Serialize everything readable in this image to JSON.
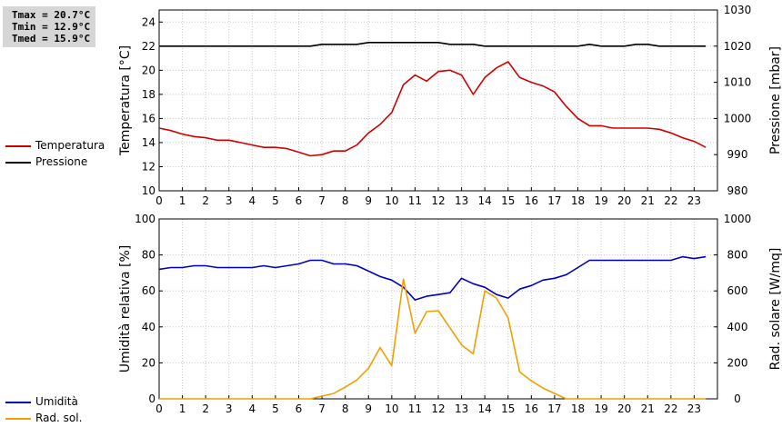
{
  "stats": {
    "tmax": "Tmax = 20.7°C",
    "tmin": "Tmin = 12.9°C",
    "tmed": "Tmed = 15.9°C"
  },
  "legend_top": [
    {
      "label": "Temperatura",
      "color": "#d00000"
    },
    {
      "label": "Pressione",
      "color": "#000000"
    }
  ],
  "legend_bottom": [
    {
      "label": "Umidità",
      "color": "#0000c0"
    },
    {
      "label": "Rad. sol.",
      "color": "#f0a000"
    }
  ],
  "chart_data": [
    {
      "type": "line",
      "xlim": [
        0,
        24
      ],
      "xticks": [
        0,
        1,
        2,
        3,
        4,
        5,
        6,
        7,
        8,
        9,
        10,
        11,
        12,
        13,
        14,
        15,
        16,
        17,
        18,
        19,
        20,
        21,
        22,
        23
      ],
      "grid": true,
      "ylabel": "Temperatura [°C]",
      "ylim": [
        10,
        25
      ],
      "yticks": [
        10,
        12,
        14,
        16,
        18,
        20,
        22,
        24
      ],
      "y2label": "Pressione [mbar]",
      "y2lim": [
        980,
        1030
      ],
      "y2ticks": [
        980,
        990,
        1000,
        1010,
        1020,
        1030
      ],
      "series": [
        {
          "name": "Temperatura",
          "axis": "left",
          "color": "#d00000",
          "x": [
            0,
            0.5,
            1,
            1.5,
            2,
            2.5,
            3,
            3.5,
            4,
            4.5,
            5,
            5.5,
            6,
            6.5,
            7,
            7.5,
            8,
            8.5,
            9,
            9.5,
            10,
            10.5,
            11,
            11.5,
            12,
            12.5,
            13,
            13.5,
            14,
            14.5,
            15,
            15.5,
            16,
            16.5,
            17,
            17.5,
            18,
            18.5,
            19,
            19.5,
            20,
            20.5,
            21,
            21.5,
            22,
            22.5,
            23,
            23.5
          ],
          "values": [
            15.2,
            15.0,
            14.7,
            14.5,
            14.4,
            14.2,
            14.2,
            14.0,
            13.8,
            13.6,
            13.6,
            13.5,
            13.2,
            12.9,
            13.0,
            13.3,
            13.3,
            13.8,
            14.8,
            15.5,
            16.5,
            18.8,
            19.6,
            19.1,
            19.9,
            20.0,
            19.6,
            18.0,
            19.4,
            20.2,
            20.7,
            19.4,
            19.0,
            18.7,
            18.2,
            17.0,
            16.0,
            15.4,
            15.4,
            15.2,
            15.2,
            15.2,
            15.2,
            15.1,
            14.8,
            14.4,
            14.1,
            13.6
          ]
        },
        {
          "name": "Pressione",
          "axis": "right",
          "color": "#000000",
          "x": [
            0,
            6.5,
            7,
            8,
            8.5,
            9,
            10,
            11,
            12,
            12.5,
            13,
            13.5,
            14,
            15,
            16,
            17,
            18,
            18.5,
            19,
            20,
            20.5,
            21,
            21.5,
            22,
            23,
            23.5
          ],
          "values": [
            1020,
            1020,
            1020.5,
            1020.5,
            1020.5,
            1021,
            1021,
            1021,
            1021,
            1020.5,
            1020.5,
            1020.5,
            1020,
            1020,
            1020,
            1020,
            1020,
            1020.5,
            1020,
            1020,
            1020.5,
            1020.5,
            1020,
            1020,
            1020,
            1020
          ]
        }
      ]
    },
    {
      "type": "line",
      "xlim": [
        0,
        24
      ],
      "xticks": [
        0,
        1,
        2,
        3,
        4,
        5,
        6,
        7,
        8,
        9,
        10,
        11,
        12,
        13,
        14,
        15,
        16,
        17,
        18,
        19,
        20,
        21,
        22,
        23
      ],
      "grid": true,
      "ylabel": "Umidità relativa [%]",
      "ylim": [
        0,
        100
      ],
      "yticks": [
        0,
        20,
        40,
        60,
        80,
        100
      ],
      "y2label": "Rad. solare [W/mq]",
      "y2lim": [
        0,
        1000
      ],
      "y2ticks": [
        0,
        200,
        400,
        600,
        800,
        1000
      ],
      "series": [
        {
          "name": "Umidità",
          "axis": "left",
          "color": "#0000c0",
          "x": [
            0,
            0.5,
            1,
            1.5,
            2,
            2.5,
            3,
            3.5,
            4,
            4.5,
            5,
            5.5,
            6,
            6.5,
            7,
            7.5,
            8,
            8.5,
            9,
            9.5,
            10,
            10.5,
            11,
            11.5,
            12,
            12.5,
            13,
            13.5,
            14,
            14.5,
            15,
            15.5,
            16,
            16.5,
            17,
            17.5,
            18,
            18.5,
            19,
            19.5,
            20,
            20.5,
            21,
            21.5,
            22,
            22.5,
            23,
            23.5
          ],
          "values": [
            72,
            73,
            73,
            74,
            74,
            73,
            73,
            73,
            73,
            74,
            73,
            74,
            75,
            77,
            77,
            75,
            75,
            74,
            71,
            68,
            66,
            62,
            55,
            57,
            58,
            59,
            67,
            64,
            62,
            58,
            56,
            61,
            63,
            66,
            67,
            69,
            73,
            77,
            77,
            77,
            77,
            77,
            77,
            77,
            77,
            79,
            78,
            79
          ]
        },
        {
          "name": "Rad. sol.",
          "axis": "right",
          "color": "#f0a000",
          "x": [
            0,
            0.5,
            1,
            1.5,
            2,
            2.5,
            3,
            3.5,
            4,
            4.5,
            5,
            5.5,
            6,
            6.5,
            7,
            7.5,
            8,
            8.5,
            9,
            9.5,
            10,
            10.5,
            11,
            11.5,
            12,
            12.5,
            13,
            13.5,
            14,
            14.5,
            15,
            15.5,
            16,
            16.5,
            17,
            17.5,
            18,
            18.5,
            19,
            19.5,
            20,
            20.5,
            21,
            21.5,
            22,
            22.5,
            23,
            23.5
          ],
          "values": [
            0,
            0,
            0,
            0,
            0,
            0,
            0,
            0,
            0,
            0,
            0,
            0,
            0,
            0,
            15,
            30,
            65,
            105,
            170,
            285,
            185,
            665,
            365,
            485,
            490,
            395,
            300,
            250,
            600,
            560,
            450,
            150,
            100,
            60,
            30,
            0,
            0,
            0,
            0,
            0,
            0,
            0,
            0,
            0,
            0,
            0,
            0,
            0
          ]
        }
      ]
    }
  ]
}
